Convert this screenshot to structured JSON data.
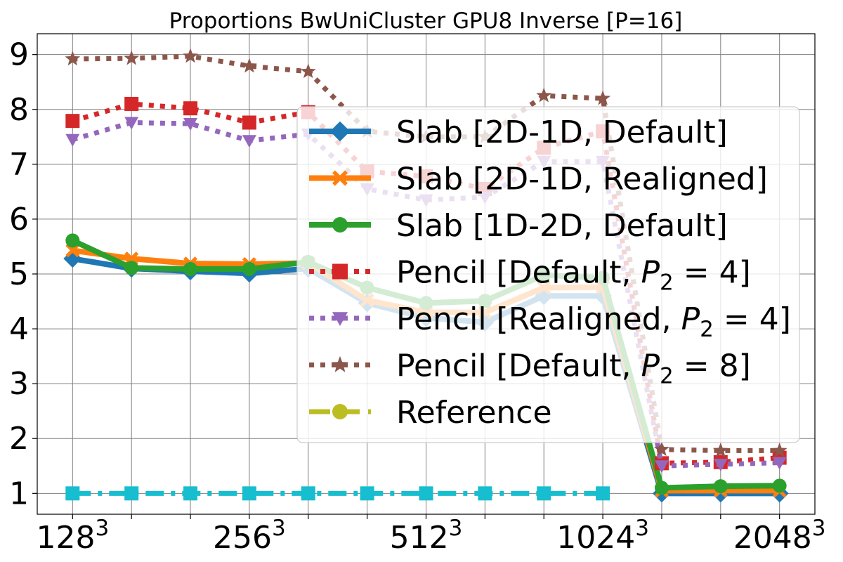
{
  "chart_data": {
    "type": "line",
    "title": "Proportions BwUniCluster GPU8 Inverse [P=16]",
    "xlabel": "",
    "ylabel": "",
    "x_ticks": [
      {
        "base": "128",
        "exp": "3"
      },
      {
        "base": "256",
        "exp": "3"
      },
      {
        "base": "512",
        "exp": "3"
      },
      {
        "base": "1024",
        "exp": "3"
      },
      {
        "base": "2048",
        "exp": "3"
      }
    ],
    "y_ticks": [
      "1",
      "2",
      "3",
      "4",
      "5",
      "6",
      "7",
      "8",
      "9"
    ],
    "ylim": [
      0.62,
      9.38
    ],
    "grid": true,
    "legend_position": "upper-right",
    "series": [
      {
        "name": "Slab [2D-1D, Default]",
        "color": "#1f77b4",
        "style": "solid",
        "marker": "diamond",
        "x": [
          0,
          1,
          2,
          3,
          4,
          5,
          6,
          7,
          8,
          9,
          10,
          11,
          12
        ],
        "values": [
          5.28,
          5.1,
          5.05,
          5.01,
          5.1,
          4.47,
          4.2,
          4.12,
          4.6,
          4.6,
          1.0,
          1.0,
          1.0
        ]
      },
      {
        "name": "Slab [2D-1D, Realigned]",
        "color": "#ff7f0e",
        "style": "solid",
        "marker": "x-filled",
        "x": [
          0,
          1,
          2,
          3,
          4,
          5,
          6,
          7,
          8,
          9,
          10,
          11,
          12
        ],
        "values": [
          5.43,
          5.28,
          5.19,
          5.18,
          5.2,
          4.52,
          4.3,
          4.3,
          4.75,
          4.76,
          1.05,
          1.05,
          1.05
        ]
      },
      {
        "name": "Slab [1D-2D, Default]",
        "color": "#2ca02c",
        "style": "solid",
        "marker": "circle",
        "x": [
          0,
          1,
          2,
          3,
          4,
          5,
          6,
          7,
          8,
          9,
          10,
          11,
          12
        ],
        "values": [
          5.61,
          5.11,
          5.09,
          5.09,
          5.22,
          4.75,
          4.47,
          4.51,
          4.98,
          4.93,
          1.1,
          1.13,
          1.14
        ]
      },
      {
        "name": "Pencil [Default, $P_2 = 4$]",
        "legend_plain": "Pencil [Default, ",
        "legend_math": "P",
        "legend_sub": "2",
        "legend_tail": " = 4]",
        "color": "#d62728",
        "style": "dotted",
        "marker": "square",
        "x": [
          0,
          1,
          2,
          3,
          4,
          5,
          6,
          7,
          8,
          9,
          10,
          11,
          12
        ],
        "values": [
          7.79,
          8.1,
          8.02,
          7.76,
          7.95,
          6.87,
          6.78,
          6.55,
          7.3,
          7.6,
          1.55,
          1.57,
          1.65
        ]
      },
      {
        "name": "Pencil [Realigned, $P_2 = 4$]",
        "legend_plain": "Pencil [Realigned, ",
        "legend_math": "P",
        "legend_sub": "2",
        "legend_tail": " = 4]",
        "color": "#9467bd",
        "style": "dotted",
        "marker": "triangle-down",
        "x": [
          0,
          1,
          2,
          3,
          4,
          5,
          6,
          7,
          8,
          9,
          10,
          11,
          12
        ],
        "values": [
          7.45,
          7.76,
          7.74,
          7.43,
          7.55,
          6.55,
          6.35,
          6.4,
          7.05,
          7.05,
          1.5,
          1.53,
          1.56
        ]
      },
      {
        "name": "Pencil [Default, $P_2 = 8$]",
        "legend_plain": "Pencil [Default, ",
        "legend_math": "P",
        "legend_sub": "2",
        "legend_tail": " = 8]",
        "color": "#8c564b",
        "style": "dotted",
        "marker": "star",
        "x": [
          0,
          1,
          2,
          3,
          4,
          5,
          6,
          7,
          8,
          9,
          10,
          11,
          12
        ],
        "values": [
          8.92,
          8.93,
          8.97,
          8.79,
          8.69,
          7.6,
          7.5,
          7.5,
          8.25,
          8.2,
          1.8,
          1.78,
          1.78
        ]
      },
      {
        "name": "Reference",
        "color": "#bcbd22",
        "style": "dashed",
        "marker": "circle",
        "x": [],
        "values": []
      },
      {
        "name": "",
        "color": "#17becf",
        "style": "dashdot",
        "marker": "square",
        "x": [
          0,
          1,
          2,
          3,
          4,
          5,
          6,
          7,
          8,
          9
        ],
        "values": [
          1,
          1,
          1,
          1,
          1,
          1,
          1,
          1,
          1,
          1
        ]
      }
    ]
  }
}
